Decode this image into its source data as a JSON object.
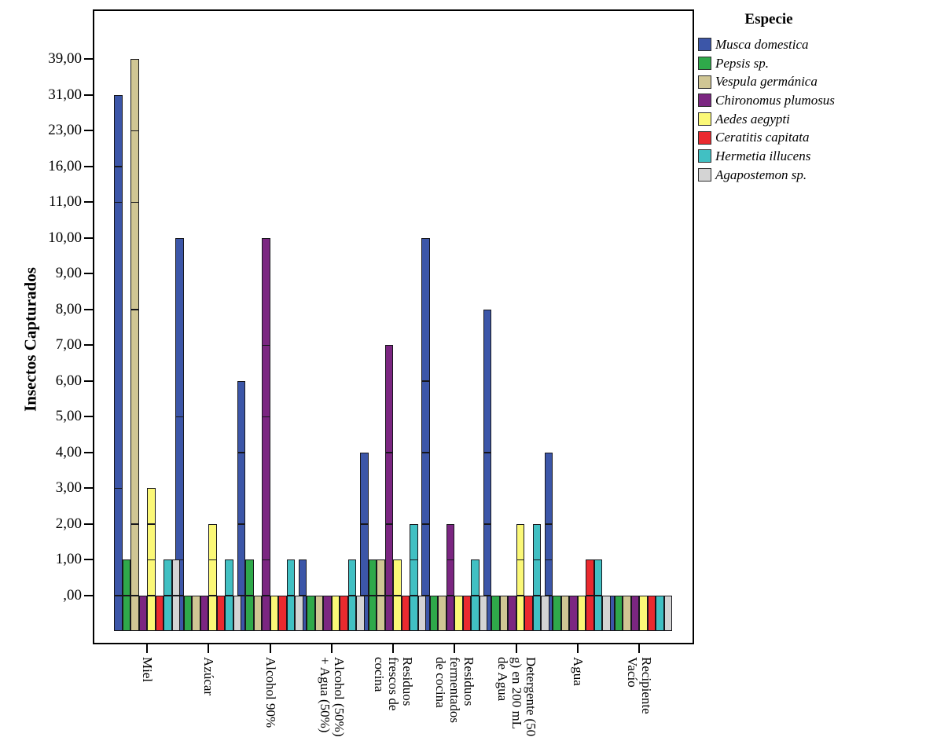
{
  "page": {
    "background": "#ffffff"
  },
  "chart_data": {
    "type": "bar",
    "title": "",
    "legend_title": "Especie",
    "legend_position": "top-right",
    "ylabel": "Insectos Capturados",
    "xlabel": "",
    "grid": false,
    "y_axis_note": "categorical scale: observed values equally spaced",
    "y_ticks": [
      ",00",
      "1,00",
      "2,00",
      "3,00",
      "4,00",
      "5,00",
      "6,00",
      "7,00",
      "8,00",
      "9,00",
      "10,00",
      "11,00",
      "16,00",
      "23,00",
      "31,00",
      "39,00"
    ],
    "y_tick_values": [
      0,
      1,
      2,
      3,
      4,
      5,
      6,
      7,
      8,
      9,
      10,
      11,
      16,
      23,
      31,
      39
    ],
    "categories": [
      {
        "label": "Miel",
        "lines": [
          "Miel"
        ]
      },
      {
        "label": "Azúcar",
        "lines": [
          "Azúcar"
        ]
      },
      {
        "label": "Alcohol 90%",
        "lines": [
          "Alcohol 90%"
        ]
      },
      {
        "label": "Alcohol (50%) + Agua (50%)",
        "lines": [
          "Alcohol (50%)",
          "+ Agua (50%)"
        ]
      },
      {
        "label": "Residuos frescos de cocina",
        "lines": [
          "Residuos",
          "frescos de",
          "cocina"
        ]
      },
      {
        "label": "Residuos fermentados de cocina",
        "lines": [
          "Residuos",
          "fermentados",
          "de cocina"
        ]
      },
      {
        "label": "Detergente (50 g) en 200 mL de Agua",
        "lines": [
          "Detergente (50",
          "g) en 200 mL",
          "de Agua"
        ]
      },
      {
        "label": "Agua",
        "lines": [
          "Agua"
        ]
      },
      {
        "label": "Recipiente Vacío",
        "lines": [
          "Recipiente",
          "Vacío"
        ]
      }
    ],
    "series": [
      {
        "name": "Musca domestica",
        "color": "#3C56A8",
        "values": [
          31,
          10,
          6,
          1,
          4,
          10,
          8,
          4,
          0
        ],
        "segment_lines": [
          [
            0,
            3,
            11,
            16
          ],
          [
            0,
            1,
            5
          ],
          [
            0,
            2,
            4
          ],
          [
            0
          ],
          [
            0,
            2
          ],
          [
            0,
            2,
            4,
            6
          ],
          [
            0,
            2,
            4
          ],
          [
            0,
            1,
            2
          ],
          []
        ]
      },
      {
        "name": "Pepsis sp.",
        "color": "#2FA94A",
        "values": [
          1,
          0,
          1,
          0,
          1,
          0,
          0,
          0,
          0
        ],
        "segment_lines": [
          [
            0
          ],
          [],
          [
            0
          ],
          [],
          [
            0
          ],
          [],
          [],
          [],
          []
        ]
      },
      {
        "name": "Vespula germánica",
        "color": "#D0C694",
        "values": [
          39,
          0,
          0,
          0,
          1,
          0,
          0,
          0,
          0
        ],
        "segment_lines": [
          [
            0,
            2,
            8,
            11,
            23
          ],
          [],
          [],
          [],
          [
            0
          ],
          [],
          [],
          [],
          []
        ]
      },
      {
        "name": "Chironomus plumosus",
        "color": "#7B2681",
        "values": [
          0,
          0,
          10,
          0,
          7,
          2,
          0,
          0,
          0
        ],
        "segment_lines": [
          [],
          [],
          [
            0,
            1,
            5,
            7
          ],
          [],
          [
            0,
            2,
            4
          ],
          [
            0,
            1
          ],
          [],
          [],
          []
        ]
      },
      {
        "name": "Aedes aegypti",
        "color": "#FBF877",
        "values": [
          3,
          2,
          0,
          0,
          1,
          0,
          2,
          0,
          0
        ],
        "segment_lines": [
          [
            0,
            1,
            2
          ],
          [
            0,
            1
          ],
          [],
          [],
          [
            0
          ],
          [],
          [
            0,
            1
          ],
          [],
          []
        ]
      },
      {
        "name": "Ceratitis capitata",
        "color": "#EA2A2F",
        "values": [
          0,
          0,
          0,
          0,
          0,
          0,
          0,
          1,
          0
        ],
        "segment_lines": [
          [],
          [],
          [],
          [],
          [],
          [],
          [],
          [
            0
          ],
          []
        ]
      },
      {
        "name": "Hermetia illucens",
        "color": "#41C0C3",
        "values": [
          1,
          1,
          1,
          1,
          2,
          1,
          2,
          1,
          0
        ],
        "segment_lines": [
          [
            0
          ],
          [
            0
          ],
          [
            0
          ],
          [
            0
          ],
          [
            0,
            1
          ],
          [
            0
          ],
          [
            0,
            1
          ],
          [
            0
          ],
          []
        ]
      },
      {
        "name": "Agapostemon sp.",
        "color": "#D4D4D4",
        "values": [
          1,
          0,
          0,
          0,
          0,
          0,
          0,
          0,
          0
        ],
        "segment_lines": [
          [
            0
          ],
          [],
          [],
          [],
          [],
          [],
          [],
          [],
          []
        ]
      }
    ]
  }
}
